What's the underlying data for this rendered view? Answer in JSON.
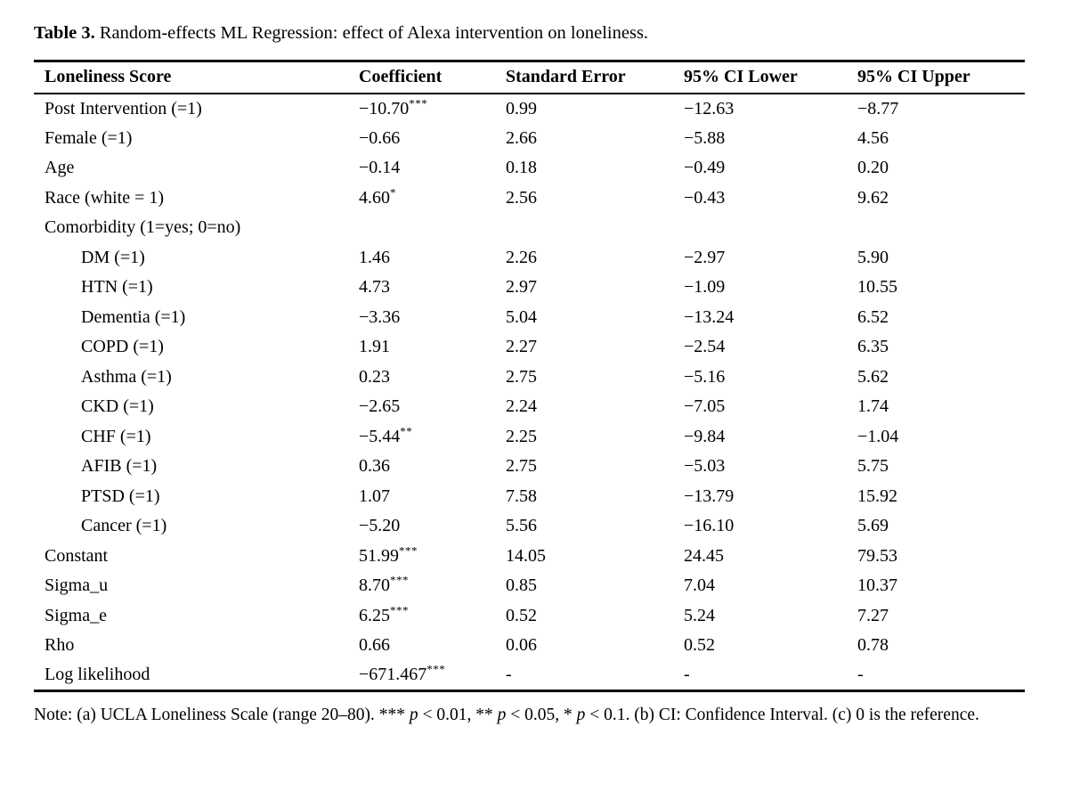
{
  "title": {
    "label": "Table 3.",
    "text": " Random-effects ML Regression: effect of Alexa intervention on loneliness."
  },
  "table": {
    "headers": [
      "Loneliness Score",
      "Coefficient",
      "Standard Error",
      "95% CI Lower",
      "95% CI Upper"
    ],
    "rows": [
      {
        "label": "Post Intervention (=1)",
        "indent": false,
        "coefficient": "−10.70",
        "stars": "***",
        "se": "0.99",
        "ci_lower": "−12.63",
        "ci_upper": "−8.77"
      },
      {
        "label": "Female (=1)",
        "indent": false,
        "coefficient": "−0.66",
        "stars": "",
        "se": "2.66",
        "ci_lower": "−5.88",
        "ci_upper": "4.56"
      },
      {
        "label": "Age",
        "indent": false,
        "coefficient": "−0.14",
        "stars": "",
        "se": "0.18",
        "ci_lower": "−0.49",
        "ci_upper": "0.20"
      },
      {
        "label": "Race (white = 1)",
        "indent": false,
        "coefficient": "4.60",
        "stars": "*",
        "se": "2.56",
        "ci_lower": "−0.43",
        "ci_upper": "9.62"
      },
      {
        "label": "Comorbidity (1=yes; 0=no)",
        "indent": false,
        "coefficient": "",
        "stars": "",
        "se": "",
        "ci_lower": "",
        "ci_upper": ""
      },
      {
        "label": "DM (=1)",
        "indent": true,
        "coefficient": "1.46",
        "stars": "",
        "se": "2.26",
        "ci_lower": "−2.97",
        "ci_upper": "5.90"
      },
      {
        "label": "HTN (=1)",
        "indent": true,
        "coefficient": "4.73",
        "stars": "",
        "se": "2.97",
        "ci_lower": "−1.09",
        "ci_upper": "10.55"
      },
      {
        "label": "Dementia (=1)",
        "indent": true,
        "coefficient": "−3.36",
        "stars": "",
        "se": "5.04",
        "ci_lower": "−13.24",
        "ci_upper": "6.52"
      },
      {
        "label": "COPD (=1)",
        "indent": true,
        "coefficient": "1.91",
        "stars": "",
        "se": "2.27",
        "ci_lower": "−2.54",
        "ci_upper": "6.35"
      },
      {
        "label": "Asthma (=1)",
        "indent": true,
        "coefficient": "0.23",
        "stars": "",
        "se": "2.75",
        "ci_lower": "−5.16",
        "ci_upper": "5.62"
      },
      {
        "label": "CKD (=1)",
        "indent": true,
        "coefficient": "−2.65",
        "stars": "",
        "se": "2.24",
        "ci_lower": "−7.05",
        "ci_upper": "1.74"
      },
      {
        "label": "CHF (=1)",
        "indent": true,
        "coefficient": "−5.44",
        "stars": "**",
        "se": "2.25",
        "ci_lower": "−9.84",
        "ci_upper": "−1.04"
      },
      {
        "label": "AFIB (=1)",
        "indent": true,
        "coefficient": "0.36",
        "stars": "",
        "se": "2.75",
        "ci_lower": "−5.03",
        "ci_upper": "5.75"
      },
      {
        "label": "PTSD (=1)",
        "indent": true,
        "coefficient": "1.07",
        "stars": "",
        "se": "7.58",
        "ci_lower": "−13.79",
        "ci_upper": "15.92"
      },
      {
        "label": "Cancer (=1)",
        "indent": true,
        "coefficient": "−5.20",
        "stars": "",
        "se": "5.56",
        "ci_lower": "−16.10",
        "ci_upper": "5.69"
      },
      {
        "label": "Constant",
        "indent": false,
        "coefficient": "51.99",
        "stars": "***",
        "se": "14.05",
        "ci_lower": "24.45",
        "ci_upper": "79.53"
      },
      {
        "label": "Sigma_u",
        "indent": false,
        "coefficient": "8.70",
        "stars": "***",
        "se": "0.85",
        "ci_lower": "7.04",
        "ci_upper": "10.37"
      },
      {
        "label": "Sigma_e",
        "indent": false,
        "coefficient": "6.25",
        "stars": "***",
        "se": "0.52",
        "ci_lower": "5.24",
        "ci_upper": "7.27"
      },
      {
        "label": "Rho",
        "indent": false,
        "coefficient": "0.66",
        "stars": "",
        "se": "0.06",
        "ci_lower": "0.52",
        "ci_upper": "0.78"
      },
      {
        "label": "Log likelihood",
        "indent": false,
        "coefficient": "−671.467",
        "stars": "***",
        "se": "-",
        "ci_lower": "-",
        "ci_upper": "-"
      }
    ]
  },
  "note": {
    "segments": [
      {
        "text": "Note: (a) UCLA Loneliness Scale (range 20–80). *** ",
        "italic": false
      },
      {
        "text": "p",
        "italic": true
      },
      {
        "text": " < 0.01, ** ",
        "italic": false
      },
      {
        "text": "p",
        "italic": true
      },
      {
        "text": " < 0.05, * ",
        "italic": false
      },
      {
        "text": "p",
        "italic": true
      },
      {
        "text": " < 0.1. (b) CI: Confidence Interval. (c) 0 is the reference.",
        "italic": false
      }
    ]
  }
}
